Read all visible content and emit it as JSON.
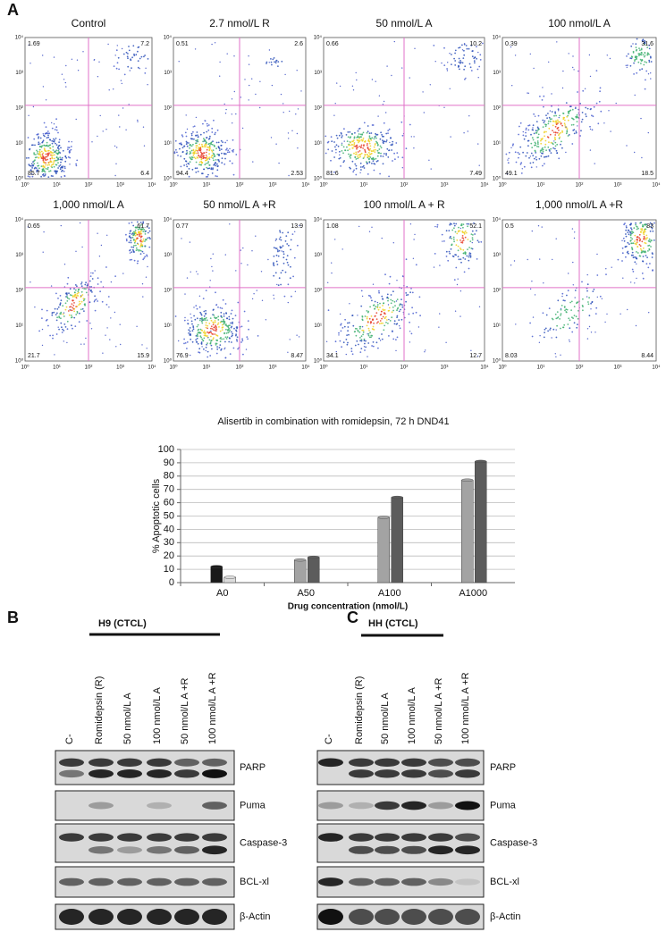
{
  "panel_labels": [
    "A",
    "B",
    "C"
  ],
  "flow_plots": [
    {
      "title": "Control",
      "quadrants": [
        "1.69",
        "7.2",
        "85.7",
        "6.4"
      ]
    },
    {
      "title": "2.7 nmol/L R",
      "quadrants": [
        "0.51",
        "2.6",
        "94.4",
        "2.53"
      ]
    },
    {
      "title": "50 nmol/L A",
      "quadrants": [
        "0.66",
        "10.2",
        "81.6",
        "7.49"
      ]
    },
    {
      "title": "100 nmol/L A",
      "quadrants": [
        "0.39",
        "31.6",
        "49.1",
        "18.5"
      ]
    },
    {
      "title": "1,000 nmol/L A",
      "quadrants": [
        "0.65",
        "61.7",
        "21.7",
        "15.9"
      ]
    },
    {
      "title": "50 nmol/L A +R",
      "quadrants": [
        "0.77",
        "13.9",
        "76.9",
        "8.47"
      ]
    },
    {
      "title": "100 nmol/L A + R",
      "quadrants": [
        "1.08",
        "52.1",
        "34.1",
        "12.7"
      ]
    },
    {
      "title": "1,000 nmol/L A +R",
      "quadrants": [
        "0.5",
        "83",
        "8.03",
        "8.44"
      ]
    }
  ],
  "flow_axis_ticks": [
    "10⁰",
    "10¹",
    "10²",
    "10³",
    "10⁴"
  ],
  "chart_data": {
    "type": "bar",
    "title": "Alisertib in combination with romidepsin, 72 h DND41",
    "y_label": "% Apoptotic cells",
    "x_label": "Drug concentration (nmol/L)",
    "categories": [
      "A0",
      "A50",
      "A100",
      "A1000"
    ],
    "series": [
      {
        "colors": [
          "#1a1a1a",
          "#a3a3a3",
          "#a3a3a3",
          "#a3a3a3"
        ],
        "values": [
          12,
          17,
          49,
          77
        ]
      },
      {
        "colors": [
          "#dcdcdc",
          "#5c5c5c",
          "#5c5c5c",
          "#5c5c5c"
        ],
        "values": [
          4,
          19,
          64,
          91
        ]
      }
    ],
    "ylim": [
      0,
      100
    ],
    "yticks": [
      0,
      10,
      20,
      30,
      40,
      50,
      60,
      70,
      80,
      90,
      100
    ],
    "grid": true
  },
  "blots": [
    {
      "title": "H9 (CTCL)",
      "lanes": [
        "C-",
        "Romidepsin (R)",
        "50 nmol/L A",
        "100  nmol/L A",
        "50 nmol/L A +R",
        "100 nmol/L A +R"
      ],
      "proteins": [
        "PARP",
        "Puma",
        "Caspase-3",
        "BCL-xl",
        "β-Actin"
      ]
    },
    {
      "title": "HH (CTCL)",
      "lanes": [
        "C-",
        "Romidepsin (R)",
        "50 nmol/L A",
        "100  nmol/L A",
        "50 nmol/L A +R",
        "100 nmol/L A +R"
      ],
      "proteins": [
        "PARP",
        "Puma",
        "Caspase-3",
        "BCL-xl",
        "β-Actin"
      ]
    }
  ]
}
